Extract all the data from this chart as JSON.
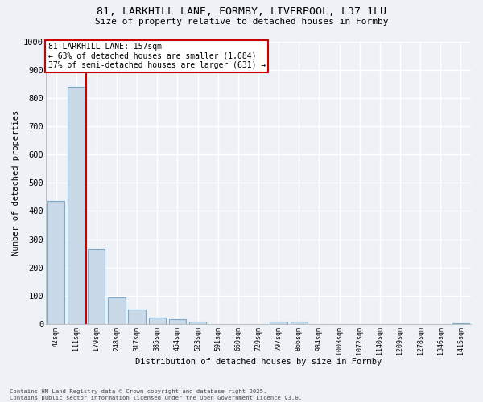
{
  "title_line1": "81, LARKHILL LANE, FORMBY, LIVERPOOL, L37 1LU",
  "title_line2": "Size of property relative to detached houses in Formby",
  "xlabel": "Distribution of detached houses by size in Formby",
  "ylabel": "Number of detached properties",
  "bar_labels": [
    "42sqm",
    "111sqm",
    "179sqm",
    "248sqm",
    "317sqm",
    "385sqm",
    "454sqm",
    "523sqm",
    "591sqm",
    "660sqm",
    "729sqm",
    "797sqm",
    "866sqm",
    "934sqm",
    "1003sqm",
    "1072sqm",
    "1140sqm",
    "1209sqm",
    "1278sqm",
    "1346sqm",
    "1415sqm"
  ],
  "bar_values": [
    435,
    840,
    265,
    93,
    50,
    22,
    18,
    8,
    0,
    0,
    0,
    8,
    8,
    0,
    0,
    0,
    0,
    0,
    0,
    0,
    4
  ],
  "bar_color": "#c9d9e8",
  "bar_edge_color": "#7aaac8",
  "vline_x": 1.5,
  "vline_color": "#cc0000",
  "ylim": [
    0,
    1000
  ],
  "yticks": [
    0,
    100,
    200,
    300,
    400,
    500,
    600,
    700,
    800,
    900,
    1000
  ],
  "annotation_title": "81 LARKHILL LANE: 157sqm",
  "annotation_line1": "← 63% of detached houses are smaller (1,084)",
  "annotation_line2": "37% of semi-detached houses are larger (631) →",
  "annotation_box_facecolor": "#ffffff",
  "annotation_box_edgecolor": "#cc0000",
  "footer_line1": "Contains HM Land Registry data © Crown copyright and database right 2025.",
  "footer_line2": "Contains public sector information licensed under the Open Government Licence v3.0.",
  "background_color": "#eef2f7",
  "grid_color": "#ffffff",
  "spine_color": "#aaaaaa"
}
